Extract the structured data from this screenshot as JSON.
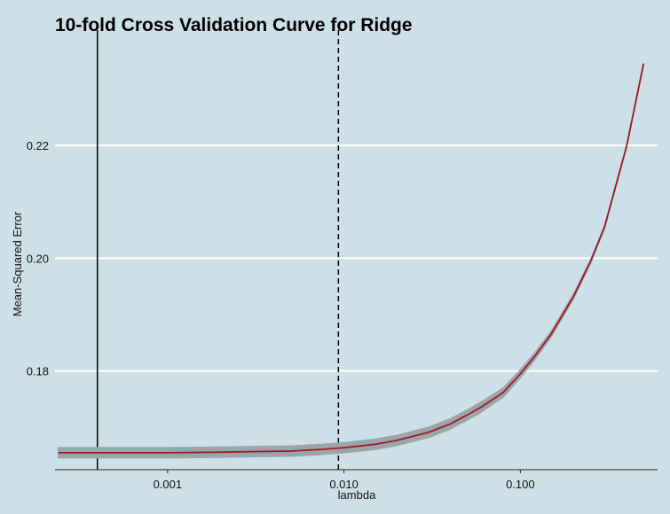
{
  "chart_data": {
    "type": "line",
    "title": "10-fold Cross Validation Curve for Ridge",
    "xlabel": "lambda",
    "ylabel": "Mean-Squared Error",
    "x_scale": "log10",
    "xlim": [
      0.00023,
      0.6
    ],
    "ylim": [
      0.1625,
      0.2395
    ],
    "x_ticks": [
      0.001,
      0.01,
      0.1
    ],
    "x_tick_labels": [
      "0.001",
      "0.010",
      "0.100"
    ],
    "y_ticks": [
      0.18,
      0.2,
      0.22
    ],
    "y_tick_labels": [
      "0.18",
      "0.20",
      "0.22"
    ],
    "grid": "horizontal",
    "vlines": [
      {
        "x": 0.0004,
        "style": "solid"
      },
      {
        "x": 0.0093,
        "style": "dashed"
      }
    ],
    "series": [
      {
        "line_color": "#9e1b24",
        "band_color": "#9aa6ab",
        "x": [
          0.00024,
          0.0003,
          0.0005,
          0.001,
          0.002,
          0.003,
          0.005,
          0.0075,
          0.01,
          0.015,
          0.02,
          0.03,
          0.04,
          0.05,
          0.06,
          0.08,
          0.1,
          0.12,
          0.15,
          0.2,
          0.25,
          0.3,
          0.4,
          0.5
        ],
        "y": [
          0.1655,
          0.1655,
          0.1655,
          0.1655,
          0.1656,
          0.1657,
          0.1658,
          0.1661,
          0.1664,
          0.167,
          0.1677,
          0.1691,
          0.1706,
          0.1722,
          0.1736,
          0.1762,
          0.1795,
          0.1825,
          0.1866,
          0.1932,
          0.1994,
          0.2055,
          0.2198,
          0.2345
        ],
        "se": [
          0.0009,
          0.0009,
          0.0009,
          0.0009,
          0.0009,
          0.0009,
          0.0009,
          0.0009,
          0.0009,
          0.0009,
          0.0009,
          0.0009,
          0.0009,
          0.0009,
          0.0009,
          0.0008,
          0.0007,
          0.0006,
          0.0005,
          0.0004,
          0.0003,
          0.0002,
          0.0001,
          0.0001
        ]
      }
    ]
  }
}
